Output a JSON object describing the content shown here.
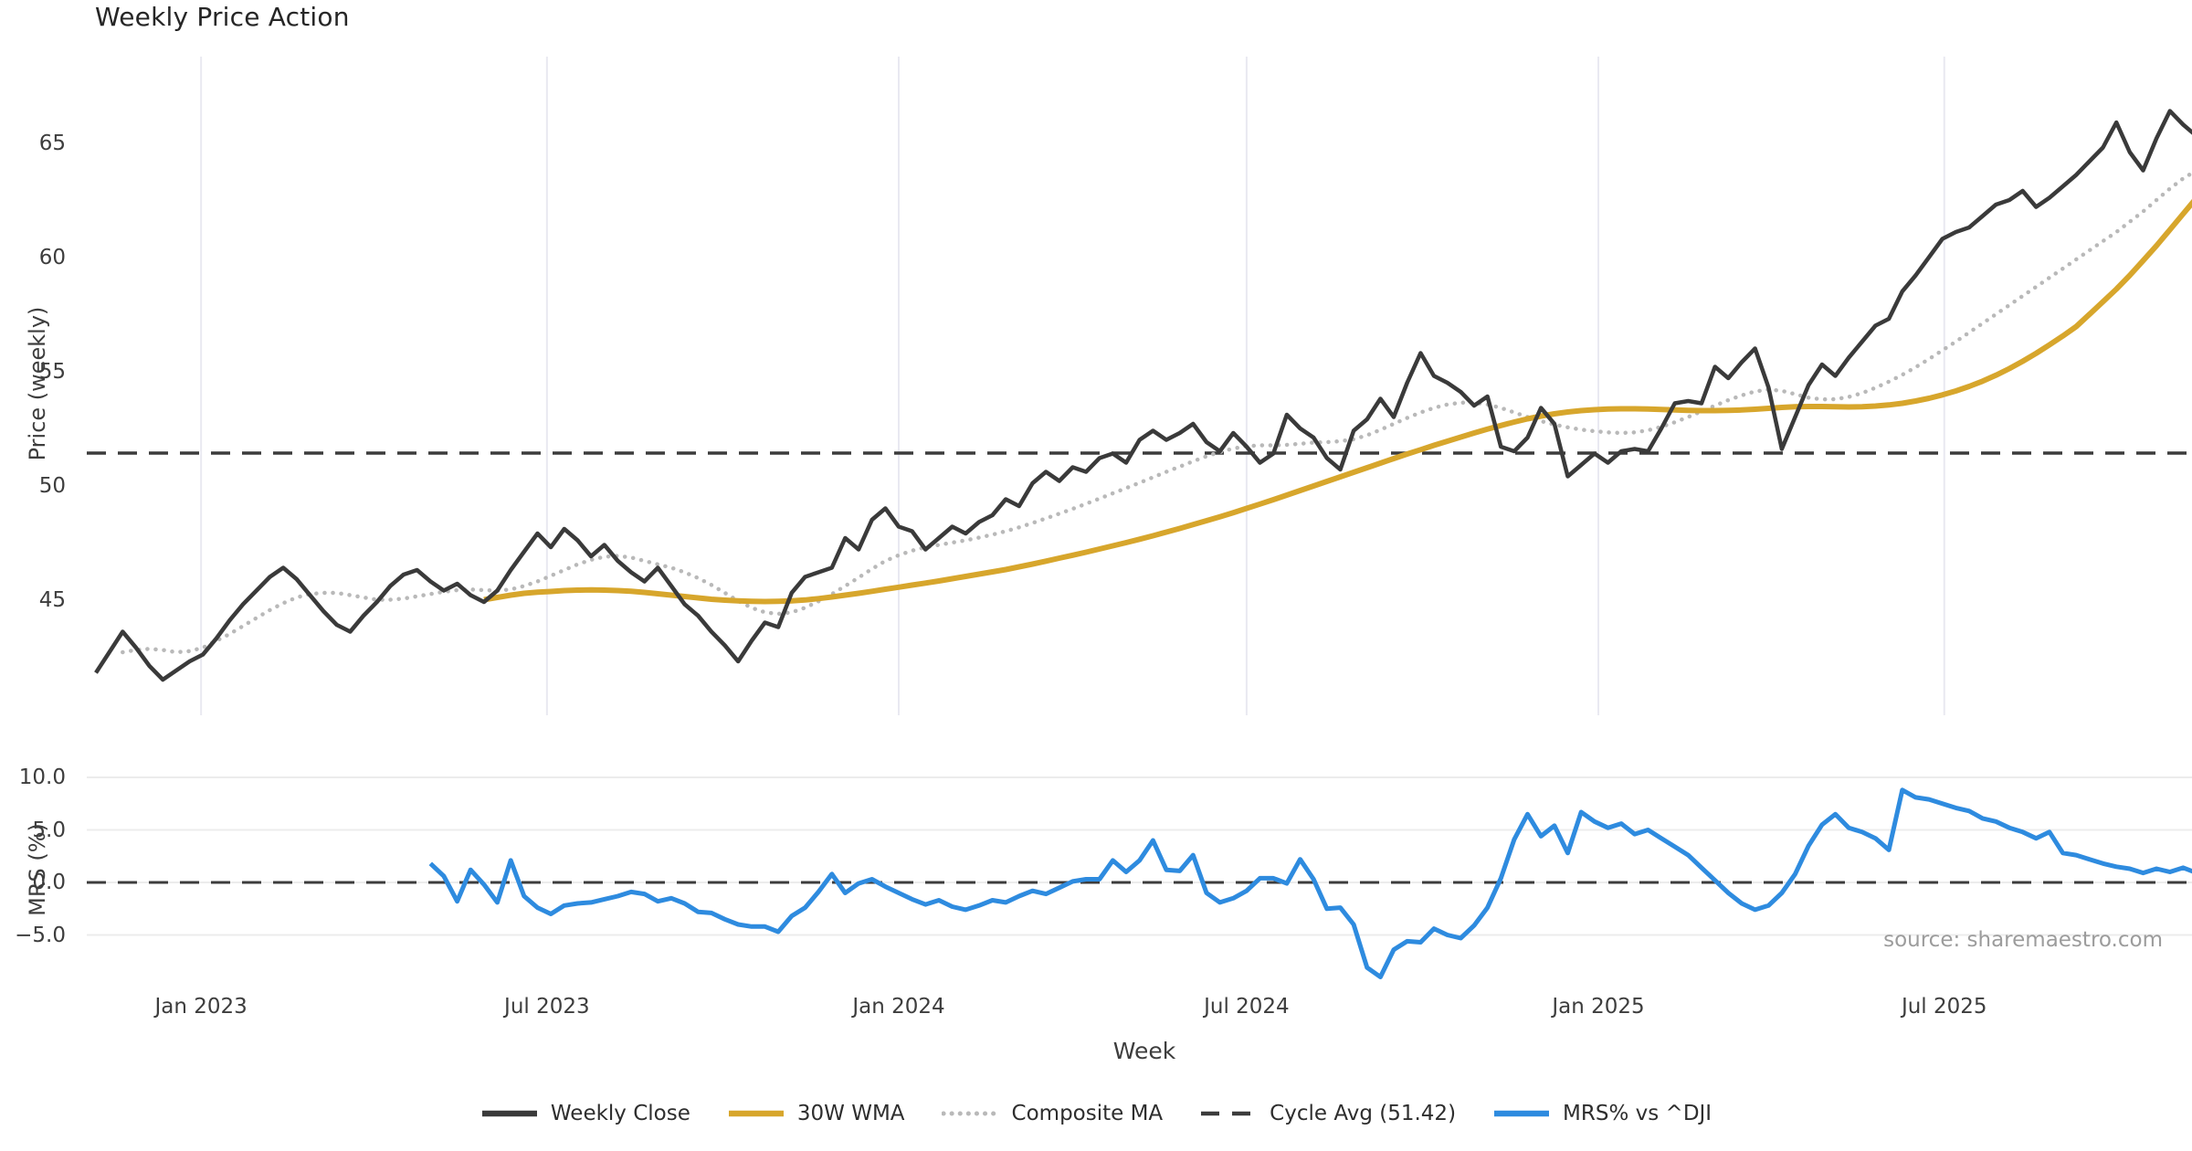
{
  "colors": {
    "bg": "#ffffff",
    "close": "#3a3a3a",
    "wma": "#d7a62c",
    "composite": "#b9b9b9",
    "cycle_avg": "#3c3c3c",
    "mrs": "#2e8bdf",
    "grid_vertical": "#e9e9f1",
    "grid_horizontal": "#ececec",
    "text": "#3d3d3d",
    "muted_text": "#9c9c9c"
  },
  "source_note": "source: sharemaestro.com",
  "chart_data": {
    "type": "line",
    "title": "Weekly Price Action",
    "x_label": "Week",
    "source": "source: sharemaestro.com",
    "frequency": "weekly",
    "start_date": "2022-11-07",
    "weeks_total": 158,
    "x_ticks": [
      {
        "week": 7.86,
        "label": "Jan 2023"
      },
      {
        "week": 33.71,
        "label": "Jul 2023"
      },
      {
        "week": 60.0,
        "label": "Jan 2024"
      },
      {
        "week": 86.0,
        "label": "Jul 2024"
      },
      {
        "week": 112.29,
        "label": "Jan 2025"
      },
      {
        "week": 138.14,
        "label": "Jul 2025"
      }
    ],
    "legend": [
      {
        "label": "Weekly Close",
        "style": "solid",
        "color_key": "close"
      },
      {
        "label": "30W WMA",
        "style": "solid",
        "color_key": "wma"
      },
      {
        "label": "Composite MA",
        "style": "dotted",
        "color_key": "composite"
      },
      {
        "label": "Cycle Avg (51.42)",
        "style": "dashed",
        "color_key": "cycle_avg"
      },
      {
        "label": "MRS% vs ^DJI",
        "style": "solid",
        "color_key": "mrs"
      }
    ],
    "panels": [
      {
        "y_label": "Price (weekly)",
        "y_ticks": [
          {
            "v": 65,
            "label": "65"
          },
          {
            "v": 60,
            "label": "60"
          },
          {
            "v": 55,
            "label": "55"
          },
          {
            "v": 50,
            "label": "50"
          },
          {
            "v": 45,
            "label": "45"
          }
        ],
        "y_range": [
          41.0,
          67.6
        ],
        "reference_line": {
          "label": "Cycle Avg",
          "value": 51.42,
          "style": "dashed"
        },
        "grid": "vertical-only",
        "series": [
          {
            "name": "Weekly Close",
            "color_key": "close",
            "style": "solid",
            "start_week": 0,
            "values": [
              41.8,
              42.7,
              43.6,
              42.9,
              42.1,
              41.5,
              41.9,
              42.3,
              42.6,
              43.3,
              44.1,
              44.8,
              45.4,
              46.0,
              46.4,
              45.9,
              45.2,
              44.5,
              43.9,
              43.6,
              44.3,
              44.9,
              45.6,
              46.1,
              46.3,
              45.8,
              45.4,
              45.7,
              45.2,
              44.9,
              45.4,
              46.3,
              47.1,
              47.9,
              47.3,
              48.1,
              47.6,
              46.9,
              47.4,
              46.7,
              46.2,
              45.8,
              46.4,
              45.6,
              44.8,
              44.3,
              43.6,
              43.0,
              42.3,
              43.2,
              44.0,
              43.8,
              45.3,
              46.0,
              46.2,
              46.4,
              47.7,
              47.2,
              48.5,
              49.0,
              48.2,
              48.0,
              47.2,
              47.7,
              48.2,
              47.9,
              48.4,
              48.7,
              49.4,
              49.1,
              50.1,
              50.6,
              50.2,
              50.8,
              50.6,
              51.2,
              51.4,
              51.0,
              52.0,
              52.4,
              52.0,
              52.3,
              52.7,
              51.9,
              51.5,
              52.3,
              51.7,
              51.0,
              51.4,
              53.1,
              52.5,
              52.1,
              51.2,
              50.7,
              52.4,
              52.9,
              53.8,
              53.0,
              54.5,
              55.8,
              54.8,
              54.5,
              54.1,
              53.5,
              53.9,
              51.7,
              51.5,
              52.1,
              53.4,
              52.7,
              50.4,
              50.9,
              51.4,
              51.0,
              51.5,
              51.6,
              51.5,
              52.5,
              53.6,
              53.7,
              53.6,
              55.2,
              54.7,
              55.4,
              56.0,
              54.3,
              51.6,
              53.0,
              54.4,
              55.3,
              54.8,
              55.6,
              56.3,
              57.0,
              57.3,
              58.5,
              59.2,
              60.0,
              60.8,
              61.1,
              61.3,
              61.8,
              62.3,
              62.5,
              62.9,
              62.2,
              62.6,
              63.1,
              63.6,
              64.2,
              64.8,
              65.9,
              64.6,
              63.8,
              65.2,
              66.4,
              65.8,
              65.3
            ]
          },
          {
            "name": "30W WMA",
            "color_key": "wma",
            "style": "solid",
            "start_week": 29,
            "values": [
              45.0,
              45.1,
              45.2,
              45.28,
              45.33,
              45.36,
              45.4,
              45.42,
              45.43,
              45.42,
              45.4,
              45.37,
              45.32,
              45.26,
              45.2,
              45.14,
              45.08,
              45.02,
              44.98,
              44.95,
              44.93,
              44.92,
              44.93,
              44.95,
              44.99,
              45.05,
              45.12,
              45.2,
              45.28,
              45.37,
              45.46,
              45.55,
              45.64,
              45.73,
              45.82,
              45.92,
              46.02,
              46.12,
              46.22,
              46.32,
              46.44,
              46.56,
              46.69,
              46.82,
              46.95,
              47.08,
              47.22,
              47.36,
              47.5,
              47.65,
              47.8,
              47.96,
              48.12,
              48.29,
              48.46,
              48.63,
              48.81,
              49.0,
              49.19,
              49.38,
              49.58,
              49.78,
              49.98,
              50.18,
              50.38,
              50.58,
              50.78,
              50.98,
              51.18,
              51.38,
              51.57,
              51.76,
              51.94,
              52.12,
              52.3,
              52.47,
              52.63,
              52.78,
              52.92,
              53.04,
              53.14,
              53.22,
              53.28,
              53.32,
              53.35,
              53.36,
              53.36,
              53.35,
              53.33,
              53.31,
              53.29,
              53.28,
              53.28,
              53.29,
              53.31,
              53.34,
              53.38,
              53.42,
              53.45,
              53.46,
              53.46,
              53.45,
              53.44,
              53.45,
              53.48,
              53.53,
              53.6,
              53.7,
              53.82,
              53.97,
              54.14,
              54.34,
              54.57,
              54.83,
              55.12,
              55.44,
              55.79,
              56.16,
              56.55,
              56.96,
              57.5,
              58.05,
              58.6,
              59.2,
              59.85,
              60.5,
              61.2,
              61.9,
              62.6
            ]
          },
          {
            "name": "Composite MA",
            "color_key": "composite",
            "style": "dotted",
            "start_week": 2,
            "values": [
              42.7,
              42.8,
              42.85,
              42.8,
              42.7,
              42.75,
              42.9,
              43.2,
              43.5,
              43.85,
              44.2,
              44.55,
              44.85,
              45.1,
              45.25,
              45.3,
              45.3,
              45.2,
              45.1,
              45.0,
              45.0,
              45.05,
              45.15,
              45.25,
              45.35,
              45.42,
              45.45,
              45.42,
              45.4,
              45.45,
              45.6,
              45.8,
              46.05,
              46.3,
              46.55,
              46.75,
              46.88,
              46.92,
              46.85,
              46.7,
              46.55,
              46.4,
              46.2,
              45.95,
              45.65,
              45.3,
              44.95,
              44.65,
              44.45,
              44.38,
              44.45,
              44.65,
              44.93,
              45.25,
              45.6,
              45.97,
              46.35,
              46.7,
              46.95,
              47.15,
              47.3,
              47.4,
              47.5,
              47.6,
              47.72,
              47.85,
              48.0,
              48.17,
              48.36,
              48.56,
              48.77,
              48.98,
              49.2,
              49.43,
              49.66,
              49.89,
              50.12,
              50.36,
              50.6,
              50.83,
              51.06,
              51.28,
              51.47,
              51.62,
              51.72,
              51.76,
              51.76,
              51.78,
              51.83,
              51.88,
              51.9,
              51.94,
              52.03,
              52.2,
              52.44,
              52.7,
              52.96,
              53.2,
              53.4,
              53.55,
              53.63,
              53.63,
              53.55,
              53.4,
              53.2,
              53.0,
              52.82,
              52.67,
              52.55,
              52.45,
              52.38,
              52.33,
              52.3,
              52.33,
              52.42,
              52.57,
              52.77,
              53.0,
              53.25,
              53.5,
              53.74,
              53.95,
              54.12,
              54.2,
              54.15,
              54.0,
              53.85,
              53.77,
              53.78,
              53.88,
              54.05,
              54.28,
              54.55,
              54.85,
              55.18,
              55.54,
              55.92,
              56.3,
              56.7,
              57.1,
              57.5,
              57.9,
              58.3,
              58.7,
              59.1,
              59.5,
              59.9,
              60.3,
              60.7,
              61.1,
              61.55,
              62.0,
              62.5,
              63.0,
              63.45,
              63.8
            ]
          }
        ]
      },
      {
        "y_label": "MRS (%)",
        "y_ticks": [
          {
            "v": 10,
            "label": "10.0"
          },
          {
            "v": 5,
            "label": "5.0"
          },
          {
            "v": 0,
            "label": "0.0"
          },
          {
            "v": -5,
            "label": "−5.0"
          }
        ],
        "y_range": [
          -10.0,
          10.8
        ],
        "reference_line": {
          "label": "zero line",
          "value": 0,
          "style": "dashed"
        },
        "grid": "horizontal",
        "series": [
          {
            "name": "MRS% vs ^DJI",
            "color_key": "mrs",
            "style": "solid",
            "start_week": 25,
            "values": [
              1.8,
              0.6,
              -1.8,
              1.2,
              -0.2,
              -1.9,
              2.1,
              -1.3,
              -2.4,
              -3.0,
              -2.2,
              -2.0,
              -1.9,
              -1.6,
              -1.3,
              -0.9,
              -1.1,
              -1.8,
              -1.5,
              -2.0,
              -2.8,
              -2.9,
              -3.5,
              -4.0,
              -4.2,
              -4.2,
              -4.7,
              -3.2,
              -2.4,
              -0.9,
              0.8,
              -1.0,
              -0.1,
              0.3,
              -0.4,
              -1.0,
              -1.6,
              -2.1,
              -1.7,
              -2.3,
              -2.6,
              -2.2,
              -1.7,
              -1.9,
              -1.3,
              -0.8,
              -1.1,
              -0.5,
              0.1,
              0.3,
              0.3,
              2.1,
              1.0,
              2.1,
              4.0,
              1.2,
              1.1,
              2.6,
              -1.0,
              -1.9,
              -1.5,
              -0.8,
              0.4,
              0.4,
              -0.1,
              2.2,
              0.3,
              -2.5,
              -2.4,
              -4.0,
              -8.1,
              -9.0,
              -6.4,
              -5.6,
              -5.7,
              -4.4,
              -5.0,
              -5.3,
              -4.1,
              -2.4,
              0.4,
              4.1,
              6.5,
              4.4,
              5.4,
              2.8,
              6.7,
              5.8,
              5.2,
              5.6,
              4.6,
              5.0,
              4.2,
              3.4,
              2.6,
              1.4,
              0.2,
              -1.0,
              -2.0,
              -2.6,
              -2.2,
              -1.0,
              0.8,
              3.5,
              5.5,
              6.5,
              5.2,
              4.8,
              4.2,
              3.1,
              8.8,
              8.1,
              7.9,
              7.5,
              7.1,
              6.8,
              6.1,
              5.8,
              5.2,
              4.8,
              4.2,
              4.8,
              2.8,
              2.6,
              2.2,
              1.8,
              1.5,
              1.3,
              0.9,
              1.3,
              1.0,
              1.4,
              0.9
            ]
          }
        ]
      }
    ]
  }
}
